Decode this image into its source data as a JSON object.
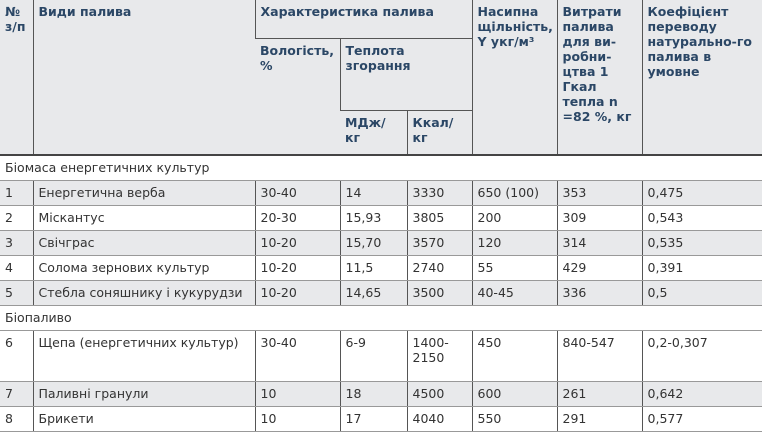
{
  "header": {
    "num": "№ з/п",
    "type": "Види палива",
    "characteristics": "Характеристика палива",
    "moisture": "Вологість, %",
    "heat": "Теплота згорання",
    "mj": "МДж/ кг",
    "kcal": "Ккал/ кг",
    "density": "Насипна щільність, Y укг/м³",
    "consumption": "Витрати палива для ви-робни-цтва 1 Гкал тепла n =82 %, кг",
    "coef": "Коефіцієнт переводу натурально-го палива в умовне"
  },
  "sections": [
    {
      "title": "Біомаса енергетичних культур",
      "rows": [
        {
          "n": "1",
          "name": "Енергетична верба",
          "moist": "30-40",
          "mj": "14",
          "kcal": "3330",
          "dens": "650 (100)",
          "cons": "353",
          "coef": "0,475"
        },
        {
          "n": "2",
          "name": "Міскантус",
          "moist": "20-30",
          "mj": "15,93",
          "kcal": "3805",
          "dens": "200",
          "cons": "309",
          "coef": "0,543"
        },
        {
          "n": "3",
          "name": "Свічграс",
          "moist": "10-20",
          "mj": "15,70",
          "kcal": "3570",
          "dens": "120",
          "cons": "314",
          "coef": "0,535"
        },
        {
          "n": "4",
          "name": "Солома зернових культур",
          "moist": "10-20",
          "mj": "11,5",
          "kcal": "2740",
          "dens": "55",
          "cons": "429",
          "coef": "0,391"
        },
        {
          "n": "5",
          "name": "Стебла соняшнику і кукурудзи",
          "moist": "10-20",
          "mj": "14,65",
          "kcal": "3500",
          "dens": "40-45",
          "cons": "336",
          "coef": "0,5"
        }
      ]
    },
    {
      "title": "Біопаливо",
      "rows": [
        {
          "n": "6",
          "name": "Щепа (енергетичних культур)",
          "moist": "30-40",
          "mj": "6-9",
          "kcal": "1400-2150",
          "dens": "450",
          "cons": "840-547",
          "coef": "0,2-0,307"
        },
        {
          "n": "7",
          "name": "Паливні гранули",
          "moist": "10",
          "mj": "18",
          "kcal": "4500",
          "dens": "600",
          "cons": "261",
          "coef": "0,642"
        },
        {
          "n": "8",
          "name": "Брикети",
          "moist": "10",
          "mj": "17",
          "kcal": "4040",
          "dens": "550",
          "cons": "291",
          "coef": "0,577"
        }
      ]
    }
  ]
}
